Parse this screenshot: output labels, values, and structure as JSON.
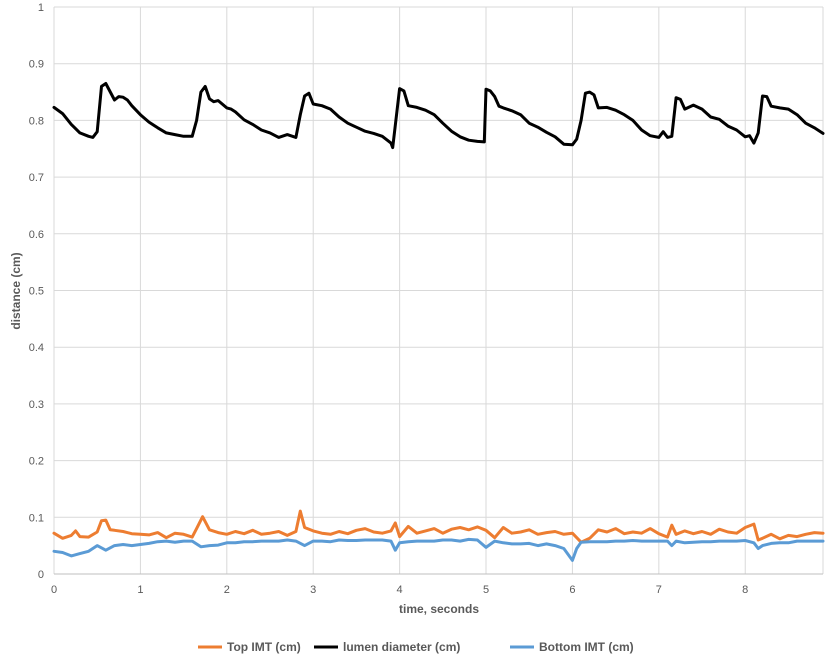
{
  "chart_data": {
    "type": "line",
    "title": "",
    "xlabel": "time, seconds",
    "ylabel": "distance (cm)",
    "xlim": [
      0,
      8.9
    ],
    "ylim": [
      0,
      1
    ],
    "xticks": [
      0,
      1,
      2,
      3,
      4,
      5,
      6,
      7,
      8
    ],
    "yticks": [
      0,
      0.1,
      0.2,
      0.3,
      0.4,
      0.5,
      0.6,
      0.7,
      0.8,
      0.9,
      1
    ],
    "grid": true,
    "legend": "bottom",
    "series": [
      {
        "name": "Top IMT (cm)",
        "color": "#ED7D31",
        "x": [
          0,
          0.1,
          0.2,
          0.25,
          0.3,
          0.4,
          0.5,
          0.55,
          0.6,
          0.65,
          0.7,
          0.8,
          0.9,
          1.0,
          1.1,
          1.2,
          1.3,
          1.4,
          1.5,
          1.6,
          1.65,
          1.72,
          1.8,
          1.9,
          2.0,
          2.1,
          2.2,
          2.3,
          2.4,
          2.5,
          2.6,
          2.7,
          2.8,
          2.85,
          2.9,
          3.0,
          3.1,
          3.2,
          3.3,
          3.4,
          3.5,
          3.6,
          3.7,
          3.8,
          3.9,
          3.95,
          4.0,
          4.1,
          4.2,
          4.3,
          4.4,
          4.5,
          4.6,
          4.7,
          4.8,
          4.9,
          5.0,
          5.1,
          5.2,
          5.3,
          5.4,
          5.5,
          5.6,
          5.7,
          5.8,
          5.9,
          6.0,
          6.1,
          6.2,
          6.3,
          6.4,
          6.5,
          6.6,
          6.7,
          6.8,
          6.9,
          7.0,
          7.1,
          7.15,
          7.2,
          7.3,
          7.4,
          7.5,
          7.6,
          7.7,
          7.8,
          7.9,
          8.0,
          8.1,
          8.15,
          8.2,
          8.3,
          8.4,
          8.5,
          8.6,
          8.7,
          8.8,
          8.9
        ],
        "values": [
          0.072,
          0.063,
          0.068,
          0.076,
          0.066,
          0.065,
          0.074,
          0.094,
          0.095,
          0.078,
          0.077,
          0.075,
          0.071,
          0.07,
          0.069,
          0.073,
          0.064,
          0.072,
          0.07,
          0.065,
          0.08,
          0.101,
          0.078,
          0.073,
          0.07,
          0.075,
          0.071,
          0.077,
          0.07,
          0.072,
          0.075,
          0.068,
          0.075,
          0.111,
          0.082,
          0.076,
          0.072,
          0.07,
          0.075,
          0.071,
          0.077,
          0.08,
          0.074,
          0.072,
          0.076,
          0.09,
          0.066,
          0.084,
          0.072,
          0.076,
          0.08,
          0.072,
          0.079,
          0.082,
          0.078,
          0.083,
          0.077,
          0.064,
          0.082,
          0.072,
          0.074,
          0.078,
          0.07,
          0.073,
          0.075,
          0.07,
          0.072,
          0.056,
          0.063,
          0.078,
          0.074,
          0.08,
          0.071,
          0.074,
          0.072,
          0.08,
          0.071,
          0.065,
          0.086,
          0.07,
          0.076,
          0.071,
          0.075,
          0.07,
          0.079,
          0.074,
          0.072,
          0.082,
          0.088,
          0.06,
          0.063,
          0.07,
          0.062,
          0.068,
          0.066,
          0.07,
          0.073,
          0.072
        ]
      },
      {
        "name": "lumen diameter (cm)",
        "color": "#000000",
        "x": [
          0,
          0.1,
          0.2,
          0.3,
          0.4,
          0.45,
          0.5,
          0.55,
          0.6,
          0.7,
          0.75,
          0.8,
          0.85,
          0.9,
          1.0,
          1.1,
          1.2,
          1.3,
          1.4,
          1.5,
          1.6,
          1.65,
          1.7,
          1.75,
          1.8,
          1.85,
          1.9,
          2.0,
          2.05,
          2.1,
          2.2,
          2.3,
          2.4,
          2.5,
          2.6,
          2.7,
          2.8,
          2.85,
          2.9,
          2.95,
          3.0,
          3.1,
          3.2,
          3.3,
          3.4,
          3.5,
          3.6,
          3.7,
          3.8,
          3.9,
          3.92,
          4.0,
          4.05,
          4.1,
          4.2,
          4.3,
          4.4,
          4.5,
          4.6,
          4.7,
          4.8,
          4.9,
          4.98,
          5.0,
          5.05,
          5.1,
          5.15,
          5.2,
          5.3,
          5.4,
          5.5,
          5.6,
          5.7,
          5.8,
          5.9,
          6.0,
          6.05,
          6.1,
          6.15,
          6.2,
          6.25,
          6.3,
          6.4,
          6.5,
          6.6,
          6.7,
          6.8,
          6.9,
          7.0,
          7.05,
          7.1,
          7.15,
          7.2,
          7.25,
          7.3,
          7.4,
          7.5,
          7.6,
          7.7,
          7.8,
          7.9,
          8.0,
          8.05,
          8.1,
          8.15,
          8.2,
          8.25,
          8.3,
          8.4,
          8.5,
          8.6,
          8.7,
          8.8,
          8.9
        ],
        "values": [
          0.823,
          0.812,
          0.793,
          0.778,
          0.772,
          0.77,
          0.78,
          0.86,
          0.865,
          0.836,
          0.842,
          0.841,
          0.836,
          0.826,
          0.81,
          0.797,
          0.787,
          0.778,
          0.775,
          0.772,
          0.772,
          0.8,
          0.85,
          0.86,
          0.838,
          0.833,
          0.835,
          0.822,
          0.82,
          0.815,
          0.801,
          0.793,
          0.783,
          0.778,
          0.77,
          0.775,
          0.77,
          0.81,
          0.843,
          0.848,
          0.829,
          0.826,
          0.82,
          0.806,
          0.795,
          0.788,
          0.781,
          0.777,
          0.772,
          0.76,
          0.752,
          0.856,
          0.852,
          0.826,
          0.823,
          0.818,
          0.81,
          0.795,
          0.781,
          0.771,
          0.765,
          0.763,
          0.762,
          0.855,
          0.852,
          0.842,
          0.825,
          0.822,
          0.817,
          0.81,
          0.795,
          0.788,
          0.779,
          0.771,
          0.758,
          0.757,
          0.767,
          0.8,
          0.848,
          0.85,
          0.845,
          0.822,
          0.823,
          0.818,
          0.81,
          0.8,
          0.783,
          0.773,
          0.77,
          0.78,
          0.77,
          0.772,
          0.84,
          0.837,
          0.82,
          0.827,
          0.82,
          0.806,
          0.802,
          0.79,
          0.783,
          0.771,
          0.773,
          0.76,
          0.778,
          0.843,
          0.842,
          0.825,
          0.822,
          0.82,
          0.81,
          0.795,
          0.787,
          0.777
        ]
      },
      {
        "name": "Bottom IMT (cm)",
        "color": "#5B9BD5",
        "x": [
          0,
          0.1,
          0.2,
          0.3,
          0.4,
          0.5,
          0.6,
          0.7,
          0.8,
          0.9,
          1.0,
          1.1,
          1.2,
          1.3,
          1.4,
          1.5,
          1.6,
          1.7,
          1.8,
          1.9,
          2.0,
          2.1,
          2.2,
          2.3,
          2.4,
          2.5,
          2.6,
          2.7,
          2.8,
          2.9,
          3.0,
          3.1,
          3.2,
          3.3,
          3.4,
          3.5,
          3.6,
          3.7,
          3.8,
          3.9,
          3.95,
          4.0,
          4.1,
          4.2,
          4.3,
          4.4,
          4.5,
          4.6,
          4.7,
          4.8,
          4.9,
          5.0,
          5.1,
          5.2,
          5.3,
          5.4,
          5.5,
          5.6,
          5.7,
          5.8,
          5.9,
          6.0,
          6.05,
          6.1,
          6.2,
          6.3,
          6.4,
          6.5,
          6.6,
          6.7,
          6.8,
          6.9,
          7.0,
          7.1,
          7.15,
          7.2,
          7.3,
          7.4,
          7.5,
          7.6,
          7.7,
          7.8,
          7.9,
          8.0,
          8.1,
          8.15,
          8.2,
          8.3,
          8.4,
          8.5,
          8.6,
          8.7,
          8.8,
          8.9
        ],
        "values": [
          0.04,
          0.038,
          0.032,
          0.036,
          0.04,
          0.05,
          0.042,
          0.05,
          0.052,
          0.05,
          0.052,
          0.054,
          0.057,
          0.058,
          0.056,
          0.058,
          0.058,
          0.048,
          0.05,
          0.051,
          0.055,
          0.055,
          0.057,
          0.057,
          0.058,
          0.058,
          0.058,
          0.06,
          0.058,
          0.05,
          0.058,
          0.058,
          0.057,
          0.06,
          0.059,
          0.059,
          0.06,
          0.06,
          0.06,
          0.058,
          0.042,
          0.055,
          0.057,
          0.058,
          0.058,
          0.058,
          0.06,
          0.06,
          0.058,
          0.061,
          0.06,
          0.047,
          0.058,
          0.055,
          0.053,
          0.053,
          0.054,
          0.05,
          0.053,
          0.05,
          0.045,
          0.024,
          0.045,
          0.056,
          0.057,
          0.057,
          0.057,
          0.058,
          0.058,
          0.059,
          0.058,
          0.058,
          0.058,
          0.058,
          0.05,
          0.058,
          0.055,
          0.056,
          0.057,
          0.057,
          0.058,
          0.058,
          0.058,
          0.059,
          0.055,
          0.045,
          0.05,
          0.054,
          0.055,
          0.055,
          0.058,
          0.058,
          0.058,
          0.058
        ]
      }
    ]
  }
}
